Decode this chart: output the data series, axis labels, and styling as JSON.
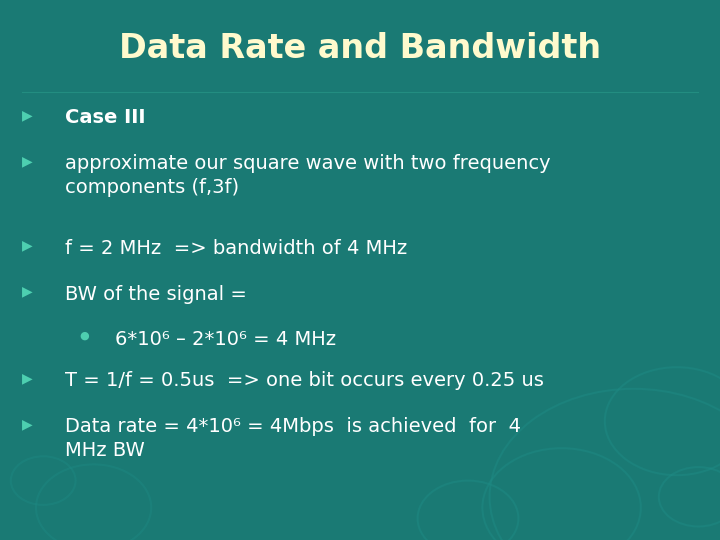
{
  "title": "Data Rate and Bandwidth",
  "title_color": "#FFFACD",
  "title_fontsize": 24,
  "title_fontweight": "bold",
  "bg_color": "#1a7a74",
  "text_color": "#FFFFFF",
  "bullet_color": "#4dcfb0",
  "bullet_symbol": "▶",
  "dot_symbol": "●",
  "lines": [
    {
      "level": 0,
      "bold": true,
      "text": "Case III"
    },
    {
      "level": 0,
      "bold": false,
      "text": "approximate our square wave with two frequency\ncomponents (f,3f)"
    },
    {
      "level": 0,
      "bold": false,
      "text": "f = 2 MHz  => bandwidth of 4 MHz"
    },
    {
      "level": 0,
      "bold": false,
      "text": "BW of the signal ="
    },
    {
      "level": 1,
      "bold": false,
      "text": "6*10⁶ – 2*10⁶ = 4 MHz"
    },
    {
      "level": 0,
      "bold": false,
      "text": "T = 1/f = 0.5us  => one bit occurs every 0.25 us"
    },
    {
      "level": 0,
      "bold": false,
      "text": "Data rate = 4*10⁶ = 4Mbps  is achieved  for  4\nMHz BW"
    }
  ],
  "fontsize_body": 14,
  "circle_color": "#1e8a84",
  "circles_br": [
    [
      0.88,
      0.08,
      0.2
    ],
    [
      0.78,
      0.06,
      0.11
    ],
    [
      0.94,
      0.22,
      0.1
    ],
    [
      0.65,
      0.04,
      0.07
    ],
    [
      0.97,
      0.08,
      0.055
    ]
  ],
  "circles_bl": [
    [
      0.13,
      0.06,
      0.08
    ],
    [
      0.06,
      0.11,
      0.045
    ]
  ]
}
